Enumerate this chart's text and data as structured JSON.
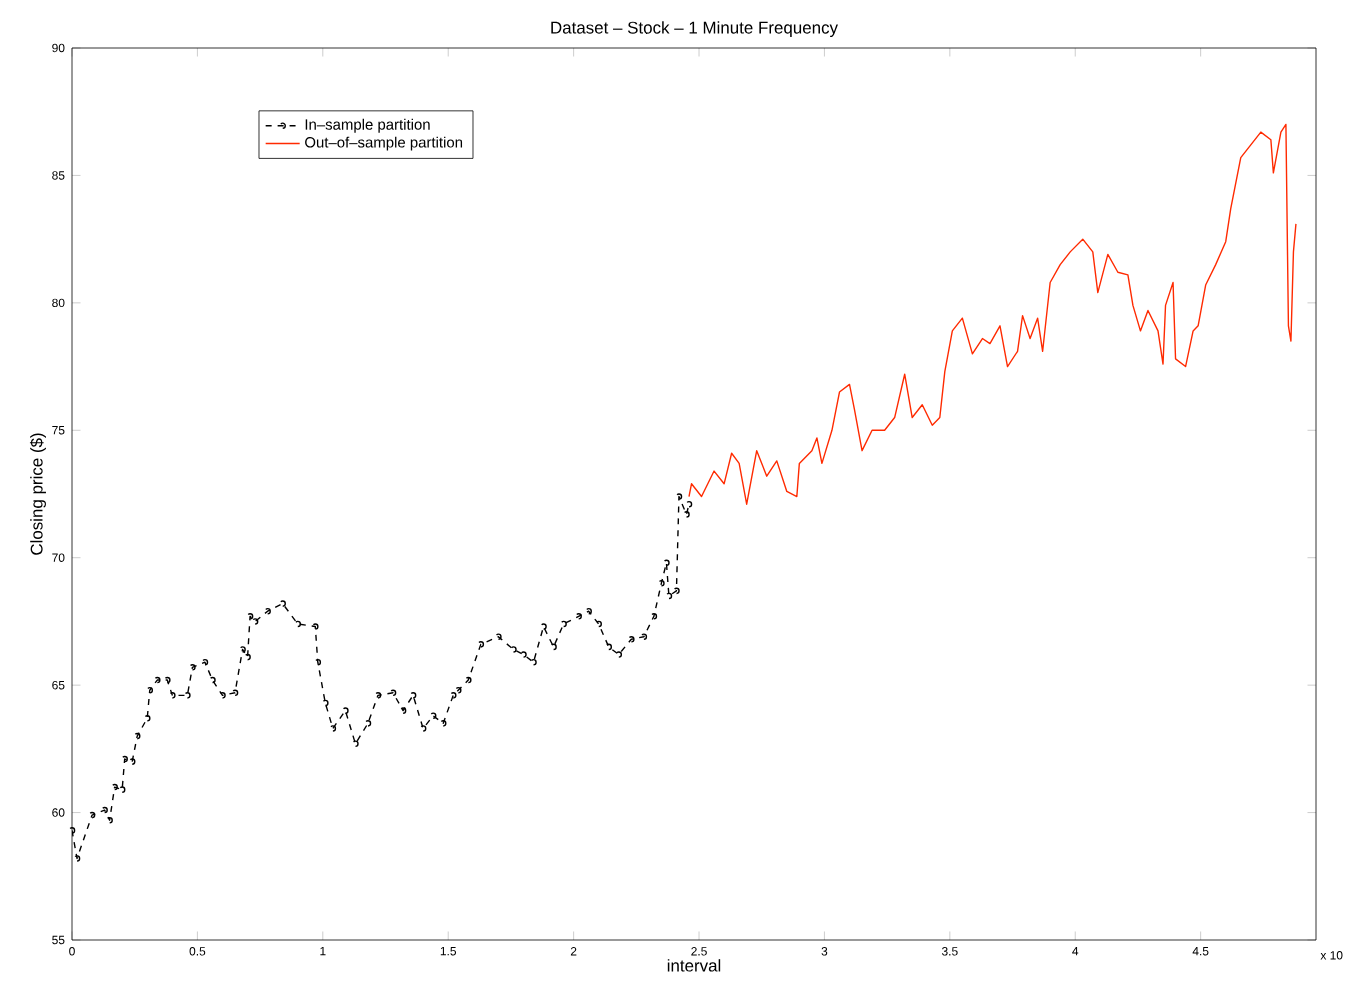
{
  "chart_data": {
    "type": "line",
    "title": "Dataset – Stock – 1 Minute Frequency",
    "xlabel": "interval",
    "ylabel": "Closing price ($)",
    "xlim": [
      0,
      4.96
    ],
    "xticks": [
      0,
      0.5,
      1,
      1.5,
      2,
      2.5,
      3,
      3.5,
      4,
      4.5
    ],
    "ylim": [
      55,
      90
    ],
    "yticks": [
      55,
      60,
      65,
      70,
      75,
      80,
      85,
      90
    ],
    "legend": "top left",
    "grid": false,
    "annotations": [
      "x 10"
    ],
    "series": [
      {
        "name": "In–sample partition",
        "color": "#000000",
        "marker": "circle",
        "line_style": "dashed",
        "x": [
          0.0,
          0.02,
          0.08,
          0.13,
          0.15,
          0.17,
          0.2,
          0.21,
          0.24,
          0.26,
          0.3,
          0.31,
          0.34,
          0.38,
          0.4,
          0.46,
          0.48,
          0.53,
          0.56,
          0.6,
          0.65,
          0.68,
          0.7,
          0.71,
          0.73,
          0.78,
          0.84,
          0.9,
          0.97,
          0.98,
          1.01,
          1.04,
          1.09,
          1.13,
          1.18,
          1.22,
          1.28,
          1.32,
          1.36,
          1.4,
          1.44,
          1.48,
          1.52,
          1.54,
          1.58,
          1.63,
          1.7,
          1.76,
          1.8,
          1.84,
          1.88,
          1.92,
          1.96,
          2.02,
          2.06,
          2.1,
          2.14,
          2.18,
          2.23,
          2.28,
          2.32,
          2.35,
          2.37,
          2.38,
          2.41,
          2.42,
          2.45,
          2.46
        ],
        "values": [
          59.3,
          58.2,
          59.9,
          60.1,
          59.7,
          61.0,
          60.9,
          62.1,
          62.0,
          63.0,
          63.7,
          64.8,
          65.2,
          65.2,
          64.6,
          64.6,
          65.7,
          65.9,
          65.2,
          64.6,
          64.7,
          66.4,
          66.1,
          67.7,
          67.5,
          67.9,
          68.2,
          67.4,
          67.3,
          65.9,
          64.3,
          63.3,
          64.0,
          62.7,
          63.5,
          64.6,
          64.7,
          64.0,
          64.6,
          63.3,
          63.8,
          63.5,
          64.6,
          64.8,
          65.2,
          66.6,
          66.9,
          66.4,
          66.2,
          65.9,
          67.3,
          66.5,
          67.4,
          67.7,
          67.9,
          67.4,
          66.5,
          66.2,
          66.8,
          66.9,
          67.7,
          69.0,
          69.8,
          68.5,
          68.7,
          72.4,
          71.7,
          72.1
        ]
      },
      {
        "name": "Out–of–sample partition",
        "color": "#ff2a00",
        "marker": "none",
        "line_style": "solid",
        "x": [
          2.46,
          2.47,
          2.51,
          2.56,
          2.6,
          2.63,
          2.66,
          2.69,
          2.73,
          2.77,
          2.81,
          2.85,
          2.89,
          2.9,
          2.95,
          2.97,
          2.99,
          3.03,
          3.06,
          3.1,
          3.12,
          3.15,
          3.19,
          3.24,
          3.28,
          3.32,
          3.35,
          3.39,
          3.43,
          3.46,
          3.48,
          3.51,
          3.55,
          3.59,
          3.63,
          3.66,
          3.7,
          3.73,
          3.77,
          3.79,
          3.82,
          3.85,
          3.87,
          3.9,
          3.94,
          3.98,
          4.03,
          4.07,
          4.09,
          4.13,
          4.17,
          4.21,
          4.23,
          4.26,
          4.29,
          4.33,
          4.35,
          4.36,
          4.39,
          4.4,
          4.44,
          4.47,
          4.49,
          4.52,
          4.56,
          4.6,
          4.62,
          4.66,
          4.7,
          4.74,
          4.78,
          4.79,
          4.82,
          4.84,
          4.85,
          4.86,
          4.87,
          4.88
        ],
        "values": [
          72.4,
          72.9,
          72.4,
          73.4,
          72.9,
          74.1,
          73.7,
          72.1,
          74.2,
          73.2,
          73.8,
          72.6,
          72.4,
          73.7,
          74.2,
          74.7,
          73.7,
          75.0,
          76.5,
          76.8,
          75.8,
          74.2,
          75.0,
          75.0,
          75.5,
          77.2,
          75.5,
          76.0,
          75.2,
          75.5,
          77.3,
          78.9,
          79.4,
          78.0,
          78.6,
          78.4,
          79.1,
          77.5,
          78.1,
          79.5,
          78.6,
          79.4,
          78.1,
          80.8,
          81.5,
          82.0,
          82.5,
          82.0,
          80.4,
          81.9,
          81.2,
          81.1,
          79.9,
          78.9,
          79.7,
          78.9,
          77.6,
          79.9,
          80.8,
          77.8,
          77.5,
          78.9,
          79.1,
          80.7,
          81.5,
          82.4,
          83.7,
          85.7,
          86.2,
          86.7,
          86.4,
          85.1,
          86.7,
          87.0,
          79.1,
          78.5,
          82.0,
          83.1
        ]
      }
    ]
  }
}
